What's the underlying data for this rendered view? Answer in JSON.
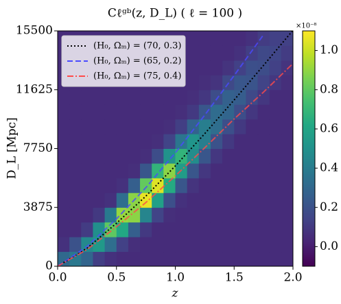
{
  "chart_data": {
    "type": "heatmap",
    "title": "Cℓᵍᵇ(z, D_L) ( ℓ = 100 )",
    "xlabel": "z",
    "ylabel": "D_L [Mpc]",
    "xlim": [
      0,
      2
    ],
    "ylim": [
      0,
      15500
    ],
    "xticks": [
      {
        "value": 0,
        "label": "0.0"
      },
      0.5,
      {
        "value": 1,
        "label": "1.0"
      },
      1.5,
      {
        "value": 2,
        "label": "2.0"
      }
    ],
    "yticks": [
      0,
      3875,
      7750,
      11625,
      15500
    ],
    "colormap": "viridis",
    "clim": [
      -0.1,
      1.1
    ],
    "colorbar": {
      "exponent": "×10⁻⁸",
      "ticks": [
        {
          "value": 0,
          "label": "0.0"
        },
        0.2,
        0.4,
        0.6,
        0.8,
        {
          "value": 1,
          "label": "1.0"
        }
      ]
    },
    "x_bins": [
      0,
      0.1,
      0.2,
      0.3,
      0.4,
      0.5,
      0.6,
      0.7,
      0.8,
      0.9,
      1.0,
      1.1,
      1.2,
      1.3,
      1.4,
      1.5,
      1.6,
      1.7,
      1.8,
      1.9,
      2.0
    ],
    "y_bins": [
      0,
      968.75,
      1937.5,
      2906.25,
      3875,
      4843.75,
      5812.5,
      6781.25,
      7750,
      8718.75,
      9687.5,
      10656.25,
      11625,
      12593.75,
      13562.5,
      14531.25,
      15500
    ],
    "values": [
      [
        0.31,
        0.38,
        0.29,
        0.12,
        0.07,
        0.05,
        0.05,
        0.05,
        0.05,
        0.05,
        0.05,
        0.05,
        0.05,
        0.05,
        0.05,
        0.05,
        0.05,
        0.05,
        0.05,
        0.05
      ],
      [
        0.07,
        0.2,
        0.46,
        0.54,
        0.33,
        0.13,
        0.06,
        0.05,
        0.05,
        0.05,
        0.05,
        0.05,
        0.05,
        0.05,
        0.05,
        0.05,
        0.05,
        0.05,
        0.05,
        0.05
      ],
      [
        0.05,
        0.05,
        0.11,
        0.49,
        0.8,
        0.62,
        0.26,
        0.1,
        0.05,
        0.05,
        0.05,
        0.05,
        0.05,
        0.05,
        0.05,
        0.05,
        0.05,
        0.05,
        0.05,
        0.05
      ],
      [
        0.05,
        0.05,
        0.05,
        0.1,
        0.39,
        0.91,
        0.89,
        0.44,
        0.14,
        0.06,
        0.05,
        0.05,
        0.05,
        0.05,
        0.05,
        0.05,
        0.05,
        0.05,
        0.05,
        0.05
      ],
      [
        0.05,
        0.05,
        0.05,
        0.05,
        0.07,
        0.33,
        0.89,
        1.06,
        0.58,
        0.19,
        0.07,
        0.05,
        0.05,
        0.05,
        0.05,
        0.05,
        0.05,
        0.05,
        0.05,
        0.05
      ],
      [
        0.05,
        0.05,
        0.05,
        0.05,
        0.05,
        0.07,
        0.26,
        0.81,
        1.04,
        0.63,
        0.22,
        0.08,
        0.05,
        0.05,
        0.05,
        0.05,
        0.05,
        0.05,
        0.05,
        0.05
      ],
      [
        0.05,
        0.05,
        0.05,
        0.05,
        0.05,
        0.05,
        0.06,
        0.22,
        0.68,
        0.89,
        0.56,
        0.22,
        0.09,
        0.05,
        0.05,
        0.05,
        0.05,
        0.05,
        0.05,
        0.05
      ],
      [
        0.05,
        0.05,
        0.05,
        0.05,
        0.05,
        0.05,
        0.05,
        0.06,
        0.18,
        0.51,
        0.68,
        0.48,
        0.22,
        0.09,
        0.05,
        0.05,
        0.05,
        0.05,
        0.05,
        0.05
      ],
      [
        0.05,
        0.05,
        0.05,
        0.05,
        0.05,
        0.05,
        0.05,
        0.05,
        0.06,
        0.14,
        0.37,
        0.52,
        0.41,
        0.2,
        0.1,
        0.05,
        0.05,
        0.05,
        0.05,
        0.05
      ],
      [
        0.05,
        0.05,
        0.05,
        0.05,
        0.05,
        0.05,
        0.05,
        0.05,
        0.05,
        0.06,
        0.12,
        0.28,
        0.41,
        0.33,
        0.19,
        0.1,
        0.05,
        0.05,
        0.05,
        0.05
      ],
      [
        0.05,
        0.05,
        0.05,
        0.05,
        0.05,
        0.05,
        0.05,
        0.05,
        0.05,
        0.05,
        0.06,
        0.1,
        0.22,
        0.32,
        0.29,
        0.18,
        0.09,
        0.05,
        0.05,
        0.05
      ],
      [
        0.05,
        0.05,
        0.05,
        0.05,
        0.05,
        0.05,
        0.05,
        0.05,
        0.05,
        0.05,
        0.05,
        0.06,
        0.09,
        0.18,
        0.27,
        0.25,
        0.16,
        0.09,
        0.05,
        0.05
      ],
      [
        0.05,
        0.05,
        0.05,
        0.05,
        0.05,
        0.05,
        0.05,
        0.05,
        0.05,
        0.05,
        0.05,
        0.05,
        0.06,
        0.08,
        0.16,
        0.22,
        0.21,
        0.14,
        0.09,
        0.06
      ],
      [
        0.05,
        0.05,
        0.05,
        0.05,
        0.05,
        0.05,
        0.05,
        0.05,
        0.05,
        0.05,
        0.05,
        0.05,
        0.05,
        0.05,
        0.08,
        0.13,
        0.19,
        0.18,
        0.13,
        0.08
      ],
      [
        0.05,
        0.05,
        0.05,
        0.05,
        0.05,
        0.05,
        0.05,
        0.05,
        0.05,
        0.05,
        0.05,
        0.05,
        0.05,
        0.05,
        0.05,
        0.07,
        0.12,
        0.16,
        0.15,
        0.11
      ],
      [
        0.05,
        0.05,
        0.05,
        0.05,
        0.05,
        0.05,
        0.05,
        0.05,
        0.05,
        0.05,
        0.05,
        0.05,
        0.05,
        0.05,
        0.05,
        0.05,
        0.07,
        0.11,
        0.13,
        0.13
      ]
    ],
    "legend": "upper left",
    "series": [
      {
        "name": "(H₀, Ωₘ) = (70, 0.3)",
        "color": "#000000",
        "linestyle": "dotted",
        "x": [
          0,
          0.25,
          0.5,
          0.75,
          1.0,
          1.25,
          1.5,
          1.75,
          2.0
        ],
        "values": [
          0,
          1190,
          2832,
          4620,
          6607,
          8730,
          10950,
          13230,
          15540
        ]
      },
      {
        "name": "(H₀, Ωₘ) = (65, 0.2)",
        "color": "#4a4aff",
        "linestyle": "dashed",
        "x": [
          0,
          0.25,
          0.5,
          0.75,
          1.0,
          1.25,
          1.5,
          1.75
        ],
        "values": [
          0,
          1300,
          3120,
          5180,
          7470,
          9950,
          12560,
          15250
        ]
      },
      {
        "name": "(H₀, Ωₘ) = (75, 0.4)",
        "color": "#ff4a4a",
        "linestyle": "dashdot",
        "x": [
          0,
          0.25,
          0.5,
          0.75,
          1.0,
          1.25,
          1.5,
          1.75,
          2.0
        ],
        "values": [
          0,
          1100,
          2600,
          4200,
          5950,
          7800,
          9700,
          11470,
          13350
        ]
      }
    ]
  }
}
